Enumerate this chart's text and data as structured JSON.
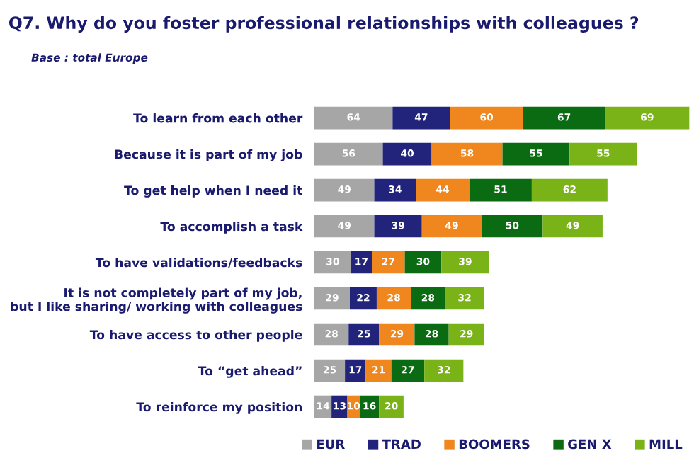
{
  "chart_data": {
    "type": "bar",
    "orientation": "horizontal",
    "stacked": true,
    "data_labels": true,
    "legend": "bottom right",
    "grid": false,
    "title": "Q7. Why do you foster professional relationships with colleagues ?",
    "subtitle": "Base : total Europe",
    "categories": [
      "To learn from each other",
      "Because it is part of my job",
      "To get help when I need it",
      "To accomplish a task",
      "To have validations/feedbacks",
      "It is not completely part of my job,\nbut I like sharing/ working with colleagues",
      "To have access to other people",
      "To “get ahead”",
      "To reinforce my position"
    ],
    "series": [
      {
        "name": "EUR",
        "color": "#a6a6a6",
        "values": [
          64,
          56,
          49,
          49,
          30,
          29,
          28,
          25,
          14
        ]
      },
      {
        "name": "TRAD",
        "color": "#22237a",
        "values": [
          47,
          40,
          34,
          39,
          17,
          22,
          25,
          17,
          13
        ]
      },
      {
        "name": "BOOMERS",
        "color": "#f0861e",
        "values": [
          60,
          58,
          44,
          49,
          27,
          28,
          29,
          21,
          10
        ]
      },
      {
        "name": "GEN X",
        "color": "#0b6b12",
        "values": [
          67,
          55,
          51,
          50,
          30,
          28,
          28,
          27,
          16
        ]
      },
      {
        "name": "MILL",
        "color": "#7ab317",
        "values": [
          69,
          55,
          62,
          49,
          39,
          32,
          29,
          32,
          20
        ]
      }
    ]
  }
}
